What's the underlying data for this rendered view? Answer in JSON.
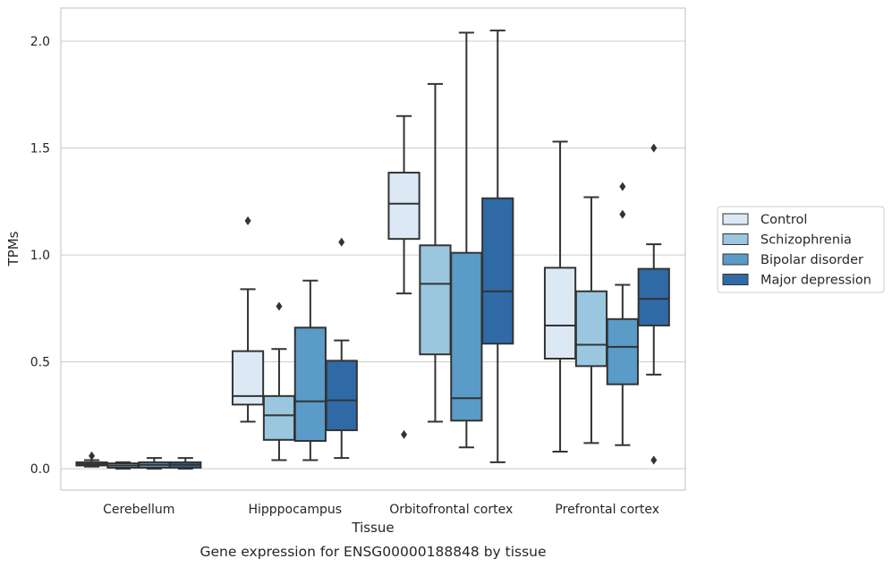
{
  "caption": "Gene expression for ENSG00000188848 by tissue",
  "chart_data": {
    "type": "boxplot",
    "xlabel": "Tissue",
    "ylabel": "TPMs",
    "ylim": [
      -0.1,
      2.155
    ],
    "yticks": [
      0.0,
      0.5,
      1.0,
      1.5,
      2.0
    ],
    "ytick_labels": [
      "0.0",
      "0.5",
      "1.0",
      "1.5",
      "2.0"
    ],
    "grid": "horizontal",
    "legend_position": "right",
    "categories": [
      "Cerebellum",
      "Hipppocampus",
      "Orbitofrontal cortex",
      "Prefrontal cortex"
    ],
    "series": [
      {
        "name": "Control",
        "color": "#dce9f5",
        "boxes": [
          {
            "whislo": 0.01,
            "q1": 0.015,
            "med": 0.022,
            "q3": 0.03,
            "whishi": 0.04,
            "fliers": [
              0.06
            ]
          },
          {
            "whislo": 0.22,
            "q1": 0.3,
            "med": 0.34,
            "q3": 0.55,
            "whishi": 0.84,
            "fliers": [
              1.16
            ]
          },
          {
            "whislo": 0.82,
            "q1": 1.075,
            "med": 1.24,
            "q3": 1.385,
            "whishi": 1.65,
            "fliers": [
              0.16
            ]
          },
          {
            "whislo": 0.08,
            "q1": 0.515,
            "med": 0.67,
            "q3": 0.94,
            "whishi": 1.53,
            "fliers": []
          }
        ]
      },
      {
        "name": "Schizophrenia",
        "color": "#9ac7df",
        "boxes": [
          {
            "whislo": 0.0,
            "q1": 0.005,
            "med": 0.015,
            "q3": 0.025,
            "whishi": 0.03,
            "fliers": []
          },
          {
            "whislo": 0.04,
            "q1": 0.135,
            "med": 0.25,
            "q3": 0.34,
            "whishi": 0.56,
            "fliers": [
              0.76
            ]
          },
          {
            "whislo": 0.22,
            "q1": 0.535,
            "med": 0.865,
            "q3": 1.045,
            "whishi": 1.8,
            "fliers": []
          },
          {
            "whislo": 0.12,
            "q1": 0.48,
            "med": 0.58,
            "q3": 0.83,
            "whishi": 1.27,
            "fliers": []
          }
        ]
      },
      {
        "name": "Bipolar disorder",
        "color": "#5a9bc8",
        "boxes": [
          {
            "whislo": 0.0,
            "q1": 0.005,
            "med": 0.018,
            "q3": 0.03,
            "whishi": 0.05,
            "fliers": []
          },
          {
            "whislo": 0.04,
            "q1": 0.13,
            "med": 0.315,
            "q3": 0.66,
            "whishi": 0.88,
            "fliers": []
          },
          {
            "whislo": 0.1,
            "q1": 0.225,
            "med": 0.33,
            "q3": 1.01,
            "whishi": 2.04,
            "fliers": []
          },
          {
            "whislo": 0.11,
            "q1": 0.395,
            "med": 0.57,
            "q3": 0.7,
            "whishi": 0.86,
            "fliers": [
              1.19,
              1.32
            ]
          }
        ]
      },
      {
        "name": "Major depression",
        "color": "#2f6aa6",
        "boxes": [
          {
            "whislo": 0.0,
            "q1": 0.005,
            "med": 0.018,
            "q3": 0.03,
            "whishi": 0.05,
            "fliers": []
          },
          {
            "whislo": 0.05,
            "q1": 0.18,
            "med": 0.32,
            "q3": 0.505,
            "whishi": 0.6,
            "fliers": [
              1.06
            ]
          },
          {
            "whislo": 0.03,
            "q1": 0.585,
            "med": 0.83,
            "q3": 1.265,
            "whishi": 2.05,
            "fliers": []
          },
          {
            "whislo": 0.44,
            "q1": 0.67,
            "med": 0.795,
            "q3": 0.935,
            "whishi": 1.05,
            "fliers": [
              0.04,
              1.5
            ]
          }
        ]
      }
    ]
  }
}
